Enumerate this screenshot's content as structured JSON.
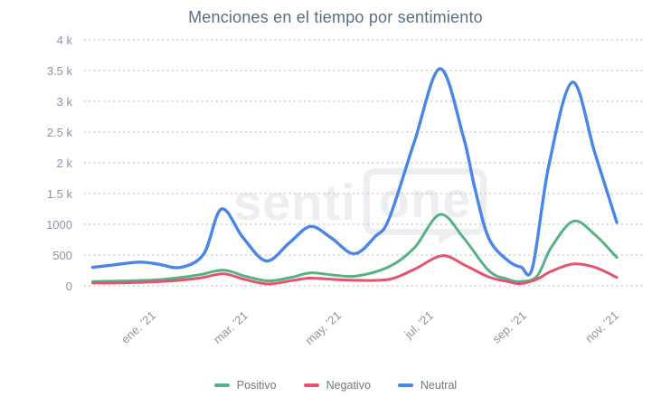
{
  "chart_data": {
    "type": "line",
    "title": "Menciones en el tiempo por sentimiento",
    "xlabel": "",
    "ylabel": "",
    "x_unit": "month_index_from_jan_2021",
    "x_range": [
      -0.4,
      10.92
    ],
    "ylim": [
      0,
      4000
    ],
    "grid": "horizontal-dotted",
    "legend_position": "bottom-center",
    "y_tick_values": [
      4000,
      3500,
      3000,
      2500,
      2000,
      1500,
      1000,
      500,
      0
    ],
    "y_tick_labels": [
      "4 k",
      "3.5 k",
      "3 k",
      "2.5 k",
      "2 k",
      "1.5 k",
      "1000",
      "500",
      "0"
    ],
    "x_tick_positions": [
      0,
      2,
      4,
      6,
      8,
      10
    ],
    "x_tick_labels": [
      "ene. '21",
      "mar. '21",
      "may. '21",
      "jul. '21",
      "sep. '21",
      "nov. '21"
    ],
    "watermark": {
      "text_left": "senti",
      "text_boxed": "one"
    },
    "series": [
      {
        "name": "Positivo",
        "color": "#56b283",
        "points": [
          [
            -0.4,
            70
          ],
          [
            0,
            75
          ],
          [
            0.6,
            85
          ],
          [
            1.2,
            110
          ],
          [
            1.9,
            180
          ],
          [
            2.42,
            255
          ],
          [
            2.9,
            155
          ],
          [
            3.4,
            80
          ],
          [
            3.9,
            140
          ],
          [
            4.3,
            210
          ],
          [
            4.8,
            175
          ],
          [
            5.3,
            160
          ],
          [
            6.0,
            310
          ],
          [
            6.55,
            620
          ],
          [
            7.1,
            1160
          ],
          [
            7.6,
            790
          ],
          [
            8.15,
            250
          ],
          [
            8.55,
            110
          ],
          [
            8.85,
            70
          ],
          [
            9.2,
            160
          ],
          [
            9.5,
            620
          ],
          [
            9.98,
            1050
          ],
          [
            10.45,
            830
          ],
          [
            10.92,
            460
          ]
        ]
      },
      {
        "name": "Negativo",
        "color": "#e5536f",
        "points": [
          [
            -0.4,
            45
          ],
          [
            0,
            45
          ],
          [
            0.6,
            55
          ],
          [
            1.2,
            75
          ],
          [
            1.9,
            125
          ],
          [
            2.42,
            195
          ],
          [
            2.9,
            100
          ],
          [
            3.4,
            30
          ],
          [
            3.9,
            85
          ],
          [
            4.3,
            125
          ],
          [
            4.8,
            105
          ],
          [
            5.3,
            90
          ],
          [
            6.0,
            105
          ],
          [
            6.55,
            270
          ],
          [
            7.15,
            490
          ],
          [
            7.65,
            330
          ],
          [
            8.15,
            145
          ],
          [
            8.55,
            70
          ],
          [
            8.85,
            35
          ],
          [
            9.2,
            110
          ],
          [
            9.5,
            235
          ],
          [
            9.98,
            355
          ],
          [
            10.45,
            300
          ],
          [
            10.92,
            135
          ]
        ]
      },
      {
        "name": "Neutral",
        "color": "#4a85e8",
        "points": [
          [
            -0.4,
            300
          ],
          [
            0,
            335
          ],
          [
            0.6,
            385
          ],
          [
            1.0,
            355
          ],
          [
            1.5,
            300
          ],
          [
            2.0,
            520
          ],
          [
            2.38,
            1250
          ],
          [
            2.85,
            780
          ],
          [
            3.35,
            405
          ],
          [
            3.85,
            700
          ],
          [
            4.3,
            965
          ],
          [
            4.75,
            780
          ],
          [
            5.25,
            520
          ],
          [
            5.7,
            800
          ],
          [
            6.0,
            1090
          ],
          [
            6.55,
            2350
          ],
          [
            7.1,
            3530
          ],
          [
            7.6,
            2440
          ],
          [
            7.85,
            1600
          ],
          [
            8.15,
            780
          ],
          [
            8.55,
            420
          ],
          [
            8.85,
            305
          ],
          [
            9.1,
            300
          ],
          [
            9.45,
            1950
          ],
          [
            9.96,
            3310
          ],
          [
            10.45,
            2150
          ],
          [
            10.92,
            1030
          ]
        ]
      }
    ]
  }
}
